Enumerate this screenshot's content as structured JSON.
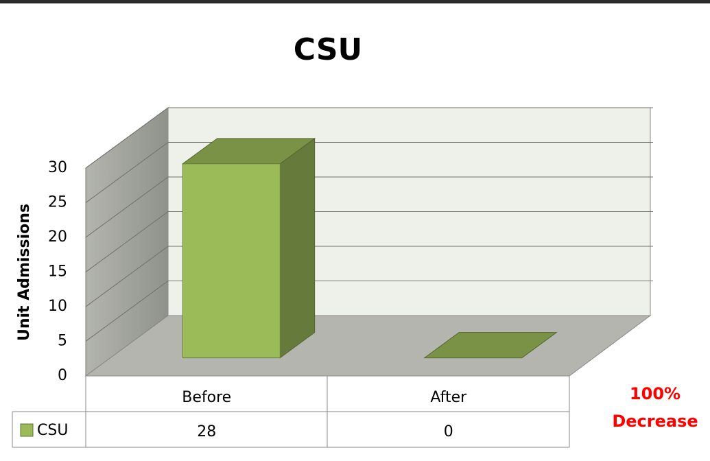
{
  "chart_data": {
    "type": "bar3d",
    "title": "CSU",
    "y_label": "Unit Admissions",
    "categories": [
      "Before",
      "After"
    ],
    "series": [
      {
        "name": "CSU",
        "color": "#9bbb59",
        "values": [
          28,
          0
        ]
      }
    ],
    "ylim": [
      0,
      30
    ],
    "yticks": [
      0,
      5,
      10,
      15,
      20,
      25,
      30
    ],
    "grid": true,
    "data_table": true,
    "annotation_lines": [
      "100%",
      "Decrease"
    ],
    "annotation_color": "#ff0000"
  }
}
